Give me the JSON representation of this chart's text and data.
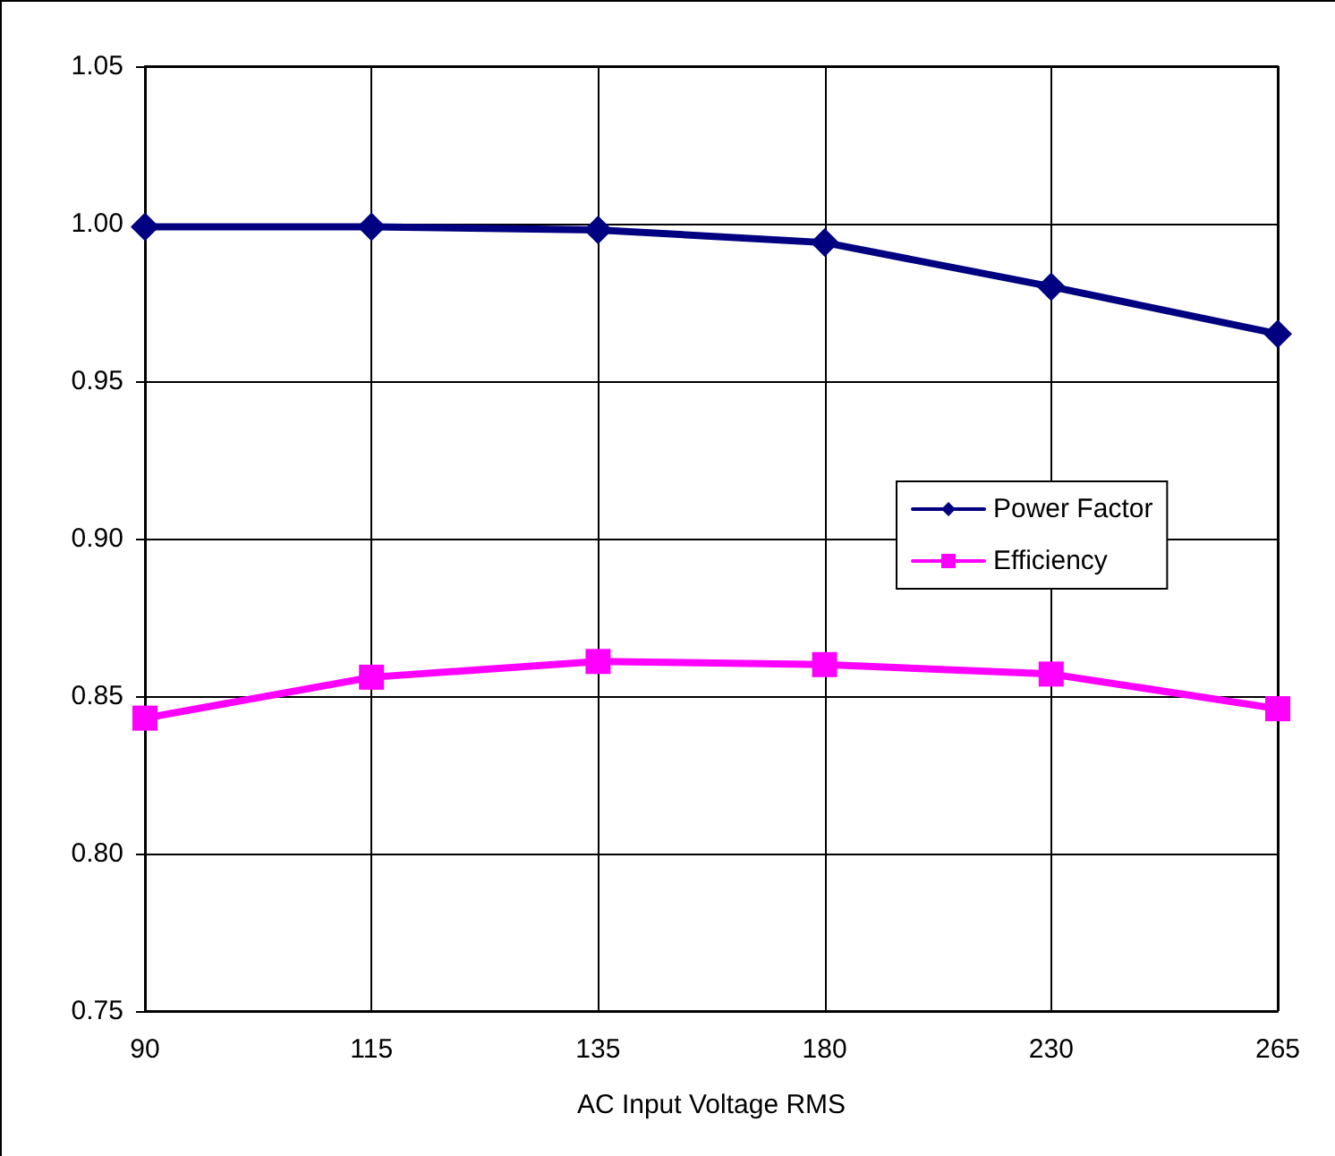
{
  "chart_data": {
    "type": "line",
    "xlabel": "AC Input Voltage RMS",
    "categories": [
      "90",
      "115",
      "135",
      "180",
      "230",
      "265"
    ],
    "series": [
      {
        "name": "Power Factor",
        "color": "#000080",
        "marker": "diamond",
        "values": [
          0.999,
          0.999,
          0.998,
          0.994,
          0.98,
          0.965
        ]
      },
      {
        "name": "Efficiency",
        "color": "#ff00ff",
        "marker": "square",
        "values": [
          0.843,
          0.856,
          0.861,
          0.86,
          0.857,
          0.846
        ]
      }
    ],
    "ylim": [
      0.75,
      1.05
    ],
    "yticks": [
      0.75,
      {
        "value": 0.8,
        "label": "0.80"
      },
      0.85,
      {
        "value": 0.9,
        "label": "0.90"
      },
      0.95,
      {
        "value": 1,
        "label": "1.00"
      },
      1.05
    ],
    "grid": true,
    "legend": "right",
    "line_style": "solid"
  }
}
